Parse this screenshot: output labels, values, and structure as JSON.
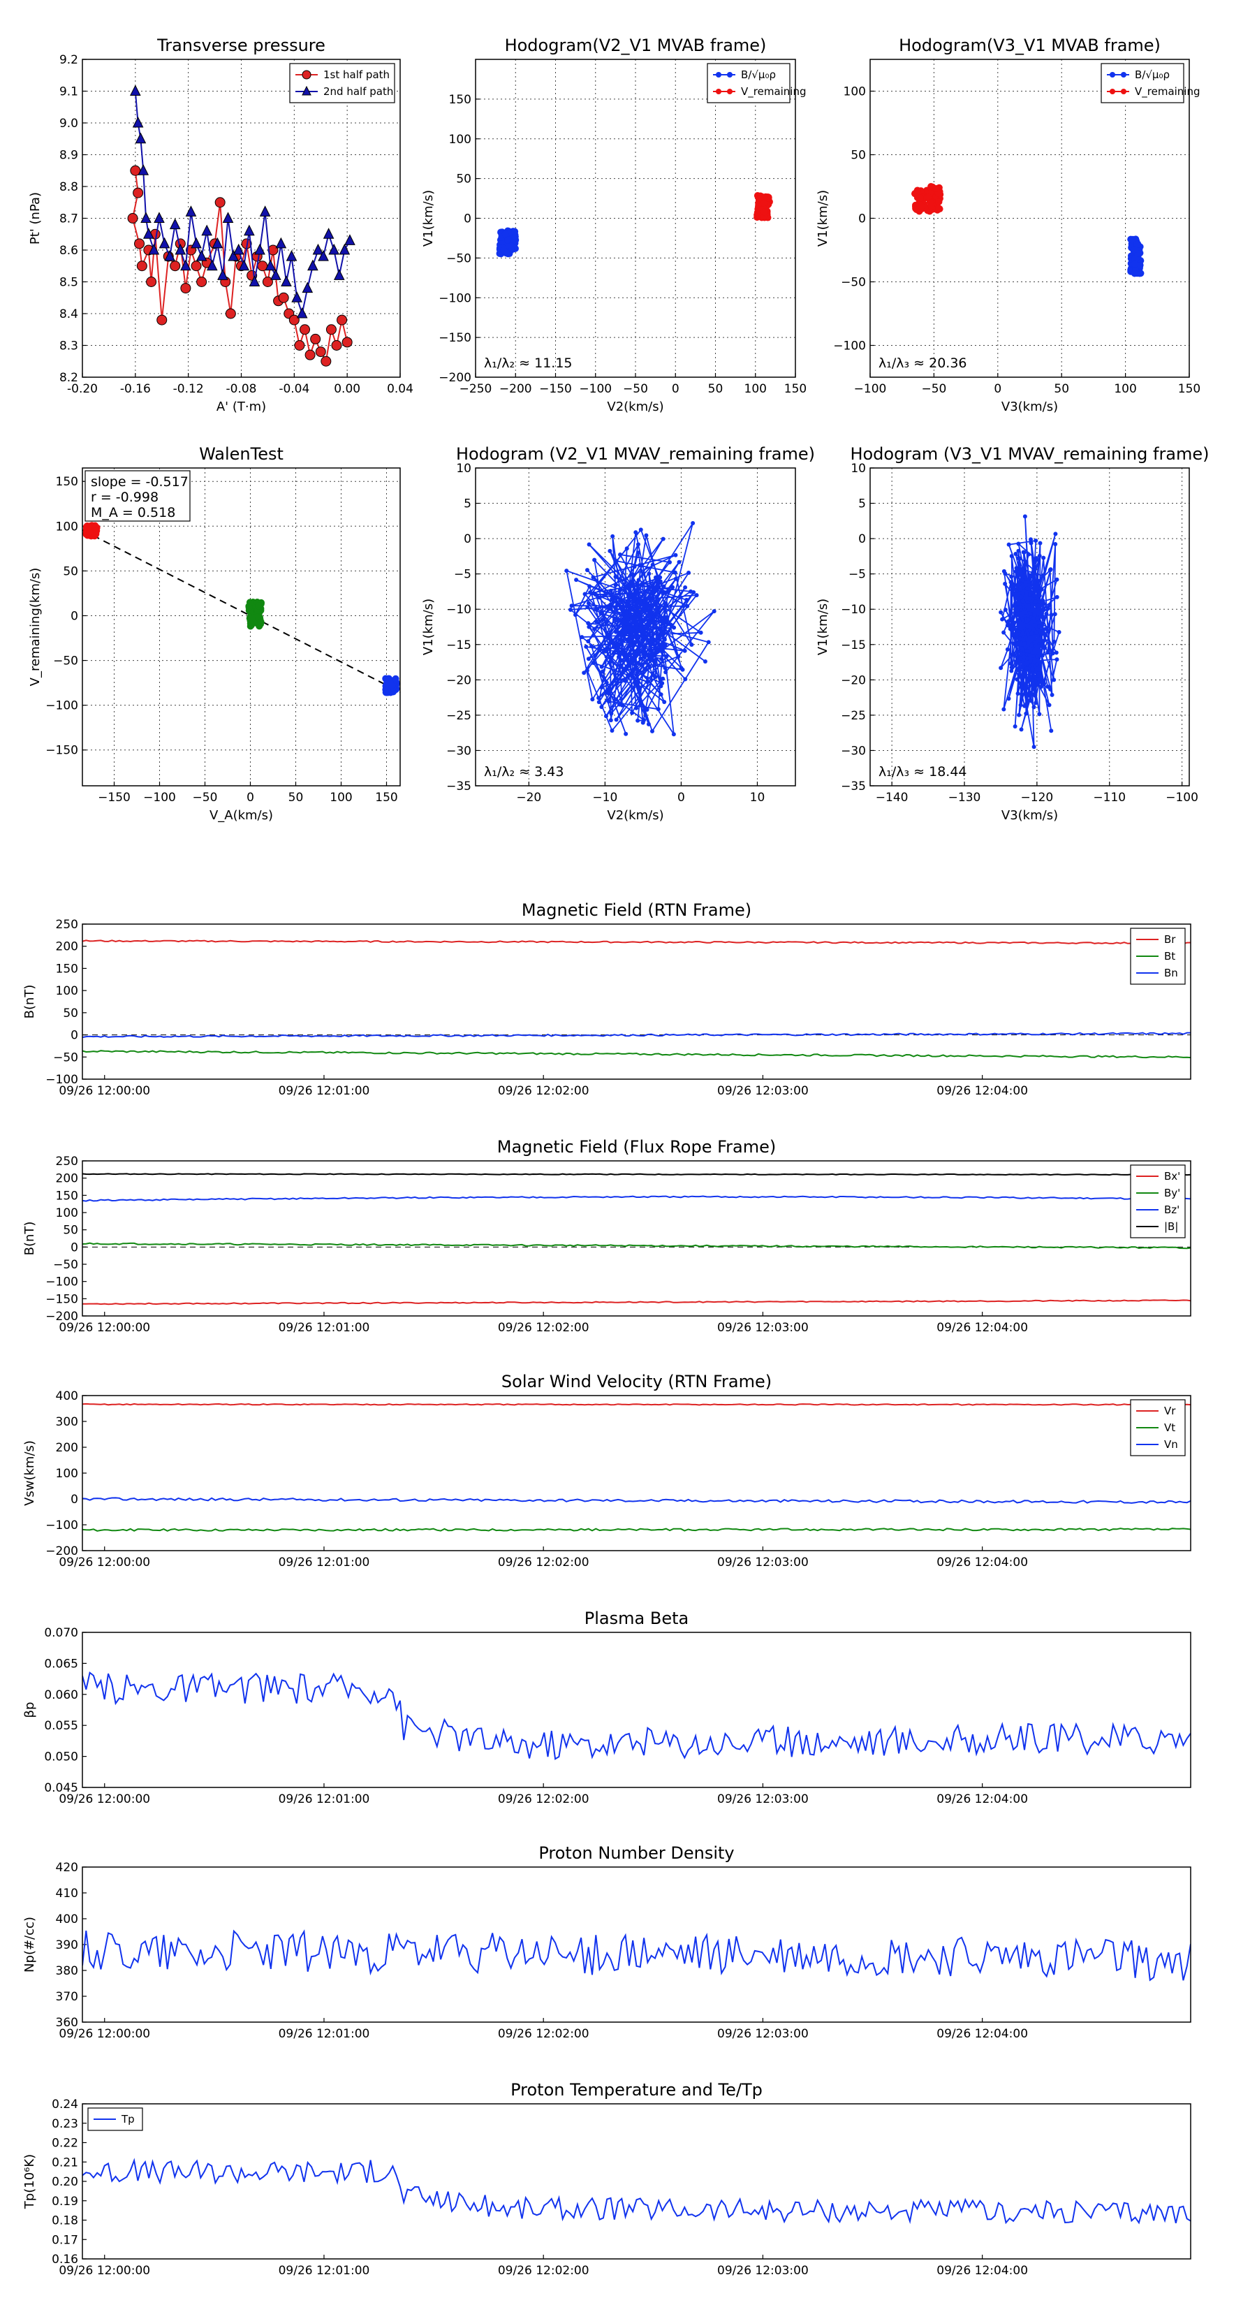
{
  "chart_data": [
    {
      "id": "tp",
      "type": "scatter",
      "title": "Transverse pressure",
      "xlabel": "A' (T·m)",
      "ylabel": "Pt' (nPa)",
      "xlim": [
        -0.2,
        0.04
      ],
      "ylim": [
        8.2,
        9.2
      ],
      "xticks": [
        "-0.20",
        "-0.16",
        "-0.12",
        "-0.08",
        "-0.04",
        "0.00",
        "0.04"
      ],
      "yticks": [
        "8.2",
        "8.3",
        "8.4",
        "8.5",
        "8.6",
        "8.7",
        "8.8",
        "8.9",
        "9.0",
        "9.1",
        "9.2"
      ],
      "series": [
        {
          "name": "1st half path",
          "color": "#dd2222",
          "marker": "circle",
          "x": [
            -0.16,
            -0.158,
            -0.162,
            -0.157,
            -0.155,
            -0.15,
            -0.148,
            -0.145,
            -0.14,
            -0.135,
            -0.13,
            -0.126,
            -0.122,
            -0.118,
            -0.114,
            -0.11,
            -0.106,
            -0.1,
            -0.096,
            -0.092,
            -0.088,
            -0.084,
            -0.08,
            -0.076,
            -0.072,
            -0.068,
            -0.064,
            -0.06,
            -0.056,
            -0.052,
            -0.048,
            -0.044,
            -0.04,
            -0.036,
            -0.032,
            -0.028,
            -0.024,
            -0.02,
            -0.016,
            -0.012,
            -0.008,
            -0.004,
            0.0
          ],
          "y": [
            8.85,
            8.78,
            8.7,
            8.62,
            8.55,
            8.6,
            8.5,
            8.65,
            8.38,
            8.58,
            8.55,
            8.62,
            8.48,
            8.6,
            8.55,
            8.5,
            8.56,
            8.62,
            8.75,
            8.5,
            8.4,
            8.58,
            8.55,
            8.62,
            8.52,
            8.58,
            8.55,
            8.5,
            8.6,
            8.44,
            8.45,
            8.4,
            8.38,
            8.3,
            8.35,
            8.27,
            8.32,
            8.28,
            8.25,
            8.35,
            8.3,
            8.38,
            8.31
          ]
        },
        {
          "name": "2nd half path",
          "color": "#1111aa",
          "marker": "triangle",
          "x": [
            -0.16,
            -0.158,
            -0.156,
            -0.154,
            -0.152,
            -0.15,
            -0.146,
            -0.142,
            -0.138,
            -0.134,
            -0.13,
            -0.126,
            -0.122,
            -0.118,
            -0.114,
            -0.11,
            -0.106,
            -0.102,
            -0.098,
            -0.094,
            -0.09,
            -0.086,
            -0.082,
            -0.078,
            -0.074,
            -0.07,
            -0.066,
            -0.062,
            -0.058,
            -0.054,
            -0.05,
            -0.046,
            -0.042,
            -0.038,
            -0.034,
            -0.03,
            -0.026,
            -0.022,
            -0.018,
            -0.014,
            -0.01,
            -0.006,
            -0.002,
            0.002
          ],
          "y": [
            9.1,
            9.0,
            8.95,
            8.85,
            8.7,
            8.65,
            8.6,
            8.7,
            8.62,
            8.58,
            8.68,
            8.6,
            8.55,
            8.72,
            8.62,
            8.58,
            8.66,
            8.55,
            8.62,
            8.52,
            8.7,
            8.58,
            8.6,
            8.55,
            8.66,
            8.5,
            8.6,
            8.72,
            8.55,
            8.52,
            8.62,
            8.5,
            8.58,
            8.45,
            8.4,
            8.48,
            8.55,
            8.6,
            8.58,
            8.65,
            8.6,
            8.52,
            8.6,
            8.63
          ]
        }
      ],
      "legend_pos": "top-right"
    },
    {
      "id": "h21",
      "type": "scatter",
      "title": "Hodogram(V2_V1 MVAB frame)",
      "xlabel": "V2(km/s)",
      "ylabel": "V1(km/s)",
      "xlim": [
        -250,
        150
      ],
      "ylim": [
        -200,
        200
      ],
      "xticks": [
        "−250",
        "−200",
        "−150",
        "−100",
        "−50",
        "0",
        "50",
        "100",
        "150"
      ],
      "yticks": [
        "−200",
        "−150",
        "−100",
        "−50",
        "0",
        "50",
        "100",
        "150"
      ],
      "series": [
        {
          "name": "B/√μ₀ρ",
          "color": "#1133ee",
          "center": [
            -210,
            -30
          ],
          "spread": [
            10,
            15
          ]
        },
        {
          "name": "V_remaining",
          "color": "#ee1111",
          "center": [
            110,
            15
          ],
          "spread": [
            8,
            15
          ]
        }
      ],
      "annotation": "λ₁/λ₂ ≈ 11.15",
      "legend_pos": "top-right"
    },
    {
      "id": "h31",
      "type": "scatter",
      "title": "Hodogram(V3_V1 MVAB frame)",
      "xlabel": "V3(km/s)",
      "ylabel": "V1(km/s)",
      "xlim": [
        -100,
        150
      ],
      "ylim": [
        -125,
        125
      ],
      "xticks": [
        "−100",
        "−50",
        "0",
        "50",
        "100",
        "150"
      ],
      "yticks": [
        "−100",
        "−50",
        "0",
        "50",
        "100"
      ],
      "series": [
        {
          "name": "B/√μ₀ρ",
          "color": "#1133ee",
          "center": [
            108,
            -30
          ],
          "spread": [
            4,
            14
          ]
        },
        {
          "name": "V_remaining",
          "color": "#ee1111",
          "center": [
            -55,
            15
          ],
          "spread": [
            10,
            10
          ]
        }
      ],
      "annotation": "λ₁/λ₃ ≈ 20.36",
      "legend_pos": "top-right"
    },
    {
      "id": "walen",
      "type": "scatter",
      "title": "WalenTest",
      "xlabel": "V_A(km/s)",
      "ylabel": "V_remaining(km/s)",
      "xlim": [
        -185,
        165
      ],
      "ylim": [
        -190,
        165
      ],
      "xticks": [
        "−150",
        "−100",
        "−50",
        "0",
        "50",
        "100",
        "150"
      ],
      "yticks": [
        "−150",
        "−100",
        "−50",
        "0",
        "50",
        "100",
        "150"
      ],
      "series": [
        {
          "name": "red",
          "color": "#ee1111",
          "center": [
            -175,
            95
          ],
          "spread": [
            6,
            6
          ]
        },
        {
          "name": "green",
          "color": "#118811",
          "center": [
            5,
            2
          ],
          "spread": [
            7,
            14
          ]
        },
        {
          "name": "blue",
          "color": "#1133ee",
          "center": [
            155,
            -78
          ],
          "spread": [
            6,
            8
          ]
        }
      ],
      "fit": {
        "slope": -0.517
      },
      "stats": [
        "slope = -0.517",
        "r = -0.998",
        "M_A = 0.518"
      ]
    },
    {
      "id": "h21r",
      "type": "line",
      "title": "Hodogram (V2_V1 MVAV_remaining frame)",
      "xlabel": "V2(km/s)",
      "ylabel": "V1(km/s)",
      "xlim": [
        -27,
        15
      ],
      "ylim": [
        -35,
        10
      ],
      "xticks": [
        "−20",
        "−10",
        "0",
        "10"
      ],
      "yticks": [
        "−35",
        "−30",
        "−25",
        "−20",
        "−15",
        "−10",
        "−5",
        "0",
        "5",
        "10"
      ],
      "color": "#1133ee",
      "center": [
        -9,
        -16
      ],
      "range": [
        [
          -18,
          6
        ],
        [
          -31,
          6
        ]
      ],
      "annotation": "λ₁/λ₂ ≈ 3.43"
    },
    {
      "id": "h31r",
      "type": "line",
      "title": "Hodogram (V3_V1 MVAV_remaining frame)",
      "xlabel": "V3(km/s)",
      "ylabel": "V1(km/s)",
      "xlim": [
        -143,
        -99
      ],
      "ylim": [
        -35,
        10
      ],
      "xticks": [
        "−140",
        "−130",
        "−120",
        "−110",
        "−100"
      ],
      "yticks": [
        "−35",
        "−30",
        "−25",
        "−20",
        "−15",
        "−10",
        "−5",
        "0",
        "5",
        "10"
      ],
      "color": "#1133ee",
      "center": [
        -121.5,
        -16
      ],
      "range": [
        [
          -126,
          -116
        ],
        [
          -31,
          6
        ]
      ],
      "annotation": "λ₁/λ₃ ≈ 18.44"
    },
    {
      "id": "bfield",
      "type": "line",
      "title": "Magnetic Field (RTN Frame)",
      "ylabel": "B(nT)",
      "ylim": [
        -100,
        250
      ],
      "yticks": [
        "250",
        "200",
        "150",
        "100",
        "50",
        "0",
        "−50",
        "−100"
      ],
      "xticks": [
        "09/26 12:00:00",
        "09/26 12:01:00",
        "09/26 12:02:00",
        "09/26 12:03:00",
        "09/26 12:04:00"
      ],
      "series": [
        {
          "name": "Br",
          "color": "#dd2222",
          "start": 212,
          "end": 207,
          "noise": 1.5
        },
        {
          "name": "Bt",
          "color": "#118811",
          "start": -37,
          "end": -50,
          "noise": 2
        },
        {
          "name": "Bn",
          "color": "#1133ee",
          "start": -4,
          "end": 3,
          "noise": 2
        }
      ],
      "zero_line": true
    },
    {
      "id": "bfr",
      "type": "line",
      "title": "Magnetic Field (Flux Rope Frame)",
      "ylabel": "B(nT)",
      "ylim": [
        -200,
        250
      ],
      "yticks": [
        "250",
        "200",
        "150",
        "100",
        "50",
        "0",
        "−50",
        "−100",
        "−150",
        "−200"
      ],
      "xticks": [
        "09/26 12:00:00",
        "09/26 12:01:00",
        "09/26 12:02:00",
        "09/26 12:03:00",
        "09/26 12:04:00"
      ],
      "series": [
        {
          "name": "Bx'",
          "color": "#dd2222",
          "start": -165,
          "end": -155,
          "noise": 1.5
        },
        {
          "name": "By'",
          "color": "#118811",
          "start": 10,
          "end": -2,
          "noise": 2
        },
        {
          "name": "Bz'",
          "color": "#1133ee",
          "start": 135,
          "end": 140,
          "noise": 2,
          "bump": 8
        },
        {
          "name": "|B|",
          "color": "#000000",
          "start": 212,
          "end": 210,
          "noise": 1
        }
      ],
      "zero_line": true
    },
    {
      "id": "vsw",
      "type": "line",
      "title": "Solar Wind Velocity (RTN Frame)",
      "ylabel": "Vsw(km/s)",
      "ylim": [
        -200,
        400
      ],
      "yticks": [
        "400",
        "300",
        "200",
        "100",
        "0",
        "−100",
        "−200"
      ],
      "xticks": [
        "09/26 12:00:00",
        "09/26 12:01:00",
        "09/26 12:02:00",
        "09/26 12:03:00",
        "09/26 12:04:00"
      ],
      "series": [
        {
          "name": "Vr",
          "color": "#dd2222",
          "start": 366,
          "end": 365,
          "noise": 2
        },
        {
          "name": "Vt",
          "color": "#118811",
          "start": -120,
          "end": -118,
          "noise": 4
        },
        {
          "name": "Vn",
          "color": "#1133ee",
          "start": 0,
          "end": -12,
          "noise": 5
        }
      ]
    },
    {
      "id": "beta",
      "type": "line",
      "title": "Plasma Beta",
      "ylabel": "βp",
      "ylim": [
        0.045,
        0.07
      ],
      "yticks": [
        "0.070",
        "0.065",
        "0.060",
        "0.055",
        "0.050",
        "0.045"
      ],
      "xticks": [
        "09/26 12:00:00",
        "09/26 12:01:00",
        "09/26 12:02:00",
        "09/26 12:03:00",
        "09/26 12:04:00"
      ],
      "series": [
        {
          "name": "beta",
          "color": "#1133ee",
          "levels": [
            [
              0,
              0.061
            ],
            [
              0.28,
              0.061
            ],
            [
              0.29,
              0.055
            ],
            [
              0.38,
              0.052
            ],
            [
              1,
              0.053
            ]
          ],
          "noise": 0.0025
        }
      ]
    },
    {
      "id": "np",
      "type": "line",
      "title": "Proton Number Density",
      "ylabel": "Np(#/cc)",
      "ylim": [
        360,
        420
      ],
      "yticks": [
        "420",
        "410",
        "400",
        "390",
        "380",
        "370",
        "360"
      ],
      "xticks": [
        "09/26 12:00:00",
        "09/26 12:01:00",
        "09/26 12:02:00",
        "09/26 12:03:00",
        "09/26 12:04:00"
      ],
      "series": [
        {
          "name": "Np",
          "color": "#1133ee",
          "levels": [
            [
              0,
              388
            ],
            [
              1,
              384
            ]
          ],
          "noise": 8
        }
      ]
    },
    {
      "id": "tp2",
      "type": "line",
      "title": "Proton Temperature and Te/Tp",
      "ylabel": "Tp(10⁶K)",
      "ylim": [
        0.16,
        0.24
      ],
      "yticks": [
        "0.24",
        "0.23",
        "0.22",
        "0.21",
        "0.20",
        "0.19",
        "0.18",
        "0.17",
        "0.16"
      ],
      "xticks": [
        "09/26 12:00:00",
        "09/26 12:01:00",
        "09/26 12:02:00",
        "09/26 12:03:00",
        "09/26 12:04:00"
      ],
      "series": [
        {
          "name": "Tp",
          "color": "#1133ee",
          "levels": [
            [
              0,
              0.205
            ],
            [
              0.28,
              0.205
            ],
            [
              0.29,
              0.193
            ],
            [
              0.38,
              0.186
            ],
            [
              1,
              0.184
            ]
          ],
          "noise": 0.006
        }
      ],
      "legend_pos": "top-left"
    }
  ]
}
